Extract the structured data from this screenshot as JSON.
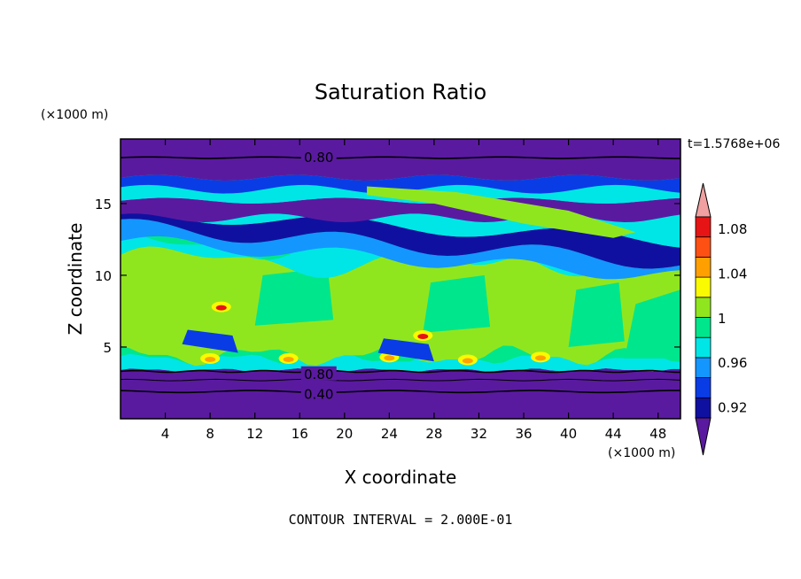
{
  "chart_data": {
    "type": "heatmap",
    "title": "Saturation Ratio",
    "xlabel": "X coordinate",
    "ylabel": "Z coordinate",
    "x_unit": "(×1000 m)",
    "y_unit": "(×1000 m)",
    "time_label": "t=1.5768e+06",
    "footer": "CONTOUR INTERVAL = 2.000E-01",
    "xlim": [
      0,
      50
    ],
    "ylim": [
      0,
      19.5
    ],
    "x_ticks": [
      "4",
      "8",
      "12",
      "16",
      "20",
      "24",
      "28",
      "32",
      "36",
      "40",
      "44",
      "48"
    ],
    "x_tick_values": [
      4,
      8,
      12,
      16,
      20,
      24,
      28,
      32,
      36,
      40,
      44,
      48
    ],
    "y_ticks": [
      "5",
      "10",
      "15"
    ],
    "y_tick_values": [
      5,
      10,
      15
    ],
    "colorbar": {
      "levels": [
        0.92,
        0.94,
        0.96,
        0.98,
        1.0,
        1.02,
        1.04,
        1.06,
        1.08,
        1.1
      ],
      "labels": [
        "0.92",
        "0.96",
        "1",
        "1.04",
        "1.08"
      ],
      "label_values": [
        0.92,
        0.96,
        1.0,
        1.04,
        1.08
      ],
      "colors": [
        "#5a1aa0",
        "#1010a0",
        "#0a3ce6",
        "#1496ff",
        "#00e6e6",
        "#00e68c",
        "#90e61e",
        "#fafa00",
        "#ffa000",
        "#ff5014",
        "#e61414",
        "#f0a0a0"
      ]
    },
    "contour_labels": [
      {
        "text": "0.80",
        "x": 17.7,
        "z": 18.2
      },
      {
        "text": "0.80",
        "x": 17.7,
        "z": 3.1
      },
      {
        "text": "0.40",
        "x": 17.7,
        "z": 1.7
      }
    ],
    "layers": [
      {
        "z_range": [
          18.2,
          19.5
        ],
        "value": "< 0.92"
      },
      {
        "z_range": [
          16.8,
          18.2
        ],
        "value": "< 0.92"
      },
      {
        "z_range": [
          12.0,
          16.8
        ],
        "value": "0.92 - 1.00 (banded)"
      },
      {
        "z_range": [
          3.5,
          12.0
        ],
        "value": "0.98 - 1.02, local maxima up to 1.08"
      },
      {
        "z_range": [
          0,
          3.5
        ],
        "value": "< 0.92"
      }
    ]
  }
}
